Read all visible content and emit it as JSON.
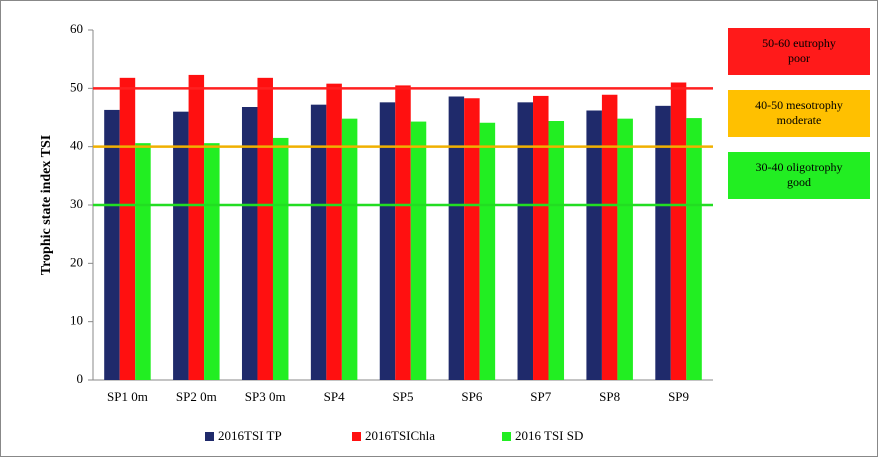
{
  "chart_data": {
    "type": "bar",
    "y_label": "Trophic state index TSI",
    "categories": [
      "SP1 0m",
      "SP2 0m",
      "SP3 0m",
      "SP4",
      "SP5",
      "SP6",
      "SP7",
      "SP8",
      "SP9"
    ],
    "series": [
      {
        "name": "2016TSI TP",
        "color": "#1f2a6b",
        "values": [
          46.3,
          46,
          46.8,
          47.2,
          47.6,
          48.6,
          47.6,
          46.2,
          47
        ]
      },
      {
        "name": "2016TSIChla",
        "color": "#ff1010",
        "values": [
          51.8,
          52.3,
          51.8,
          50.8,
          50.5,
          48.3,
          48.7,
          48.9,
          51
        ]
      },
      {
        "name": "2016 TSI SD",
        "color": "#22ee22",
        "values": [
          40.6,
          40.6,
          41.5,
          44.8,
          44.3,
          44.1,
          44.4,
          44.8,
          44.9
        ]
      }
    ],
    "ylim": [
      0,
      60
    ],
    "yticks": [
      0,
      10,
      20,
      30,
      40,
      50,
      60
    ],
    "reference_lines": [
      {
        "value": 50,
        "color": "#ff2020"
      },
      {
        "value": 40,
        "color": "#f0b000"
      },
      {
        "value": 30,
        "color": "#22dd22"
      }
    ],
    "annotations": [
      {
        "lines": [
          "50-60 eutrophy",
          "poor"
        ],
        "color": "#ff1a1a"
      },
      {
        "lines": [
          "40-50 mesotrophy",
          "moderate"
        ],
        "color": "#ffc000"
      },
      {
        "lines": [
          "30-40 oligotrophy",
          "good"
        ],
        "color": "#22ee22"
      }
    ]
  }
}
